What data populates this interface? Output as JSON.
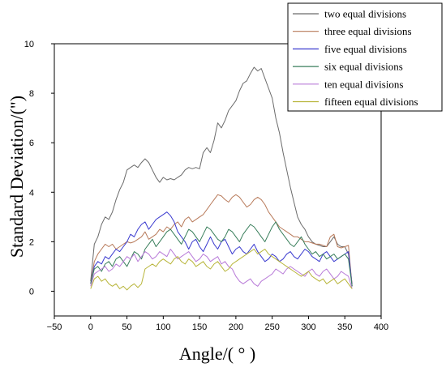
{
  "chart_data": {
    "type": "line",
    "xlabel": "Angle/( ° )",
    "ylabel": "Standard Deviation/(\")",
    "xlim": [
      -50,
      400
    ],
    "ylim": [
      -1,
      10
    ],
    "xticks": [
      "−50",
      "0",
      "50",
      "100",
      "150",
      "200",
      "250",
      "300",
      "350",
      "400"
    ],
    "yticks": [
      "0",
      "2",
      "4",
      "6",
      "8",
      "10"
    ],
    "legend_position": "top-right",
    "series": [
      {
        "name": "two equal divisions",
        "color": "#6b6b6b",
        "x": [
          0,
          5,
          10,
          15,
          20,
          25,
          30,
          35,
          40,
          45,
          50,
          55,
          60,
          65,
          70,
          75,
          80,
          85,
          90,
          95,
          100,
          105,
          110,
          115,
          120,
          125,
          130,
          135,
          140,
          145,
          150,
          155,
          160,
          165,
          170,
          175,
          180,
          185,
          190,
          195,
          200,
          205,
          210,
          215,
          220,
          225,
          230,
          235,
          240,
          245,
          250,
          255,
          260,
          265,
          270,
          275,
          280,
          285,
          290,
          295,
          300,
          305,
          310,
          315,
          320,
          325,
          330,
          335,
          340,
          345,
          350,
          355,
          360
        ],
        "y": [
          0.4,
          1.9,
          2.2,
          2.7,
          3.0,
          2.9,
          3.2,
          3.7,
          4.1,
          4.4,
          4.9,
          5.0,
          5.1,
          5.0,
          5.2,
          5.35,
          5.2,
          4.9,
          4.6,
          4.4,
          4.6,
          4.5,
          4.55,
          4.5,
          4.6,
          4.7,
          4.9,
          5.0,
          4.95,
          5.0,
          4.95,
          5.6,
          5.8,
          5.6,
          6.1,
          6.8,
          6.6,
          6.9,
          7.3,
          7.5,
          7.7,
          8.1,
          8.4,
          8.5,
          8.8,
          9.05,
          8.9,
          9.0,
          8.6,
          8.2,
          7.8,
          7.0,
          6.4,
          5.6,
          4.9,
          4.2,
          3.6,
          3.0,
          2.7,
          2.5,
          2.2,
          2.0,
          1.9,
          1.85,
          1.8,
          1.8,
          2.0,
          2.2,
          1.9,
          1.8,
          1.8,
          1.5,
          0.3
        ]
      },
      {
        "name": "three equal divisions",
        "color": "#b87a5a",
        "x": [
          0,
          5,
          10,
          15,
          20,
          25,
          30,
          35,
          40,
          45,
          50,
          55,
          60,
          65,
          70,
          75,
          80,
          85,
          90,
          95,
          100,
          105,
          110,
          115,
          120,
          125,
          130,
          135,
          140,
          145,
          150,
          155,
          160,
          165,
          170,
          175,
          180,
          185,
          190,
          195,
          200,
          205,
          210,
          215,
          220,
          225,
          230,
          235,
          240,
          245,
          250,
          255,
          260,
          265,
          270,
          275,
          280,
          285,
          290,
          295,
          300,
          305,
          310,
          315,
          320,
          325,
          330,
          335,
          340,
          345,
          350,
          355,
          360
        ],
        "y": [
          0.3,
          1.2,
          1.5,
          1.7,
          1.9,
          1.8,
          1.9,
          1.7,
          1.8,
          1.9,
          2.0,
          1.95,
          2.0,
          2.1,
          2.2,
          2.4,
          2.1,
          2.2,
          2.3,
          2.5,
          2.4,
          2.6,
          2.5,
          2.7,
          2.8,
          2.6,
          2.9,
          3.0,
          2.8,
          2.9,
          3.0,
          3.1,
          3.3,
          3.5,
          3.7,
          3.9,
          3.85,
          3.7,
          3.6,
          3.8,
          3.9,
          3.8,
          3.6,
          3.4,
          3.5,
          3.7,
          3.8,
          3.7,
          3.5,
          3.2,
          3.0,
          2.8,
          2.6,
          2.5,
          2.4,
          2.3,
          2.2,
          2.2,
          2.1,
          2.0,
          2.0,
          1.95,
          1.9,
          1.9,
          1.85,
          1.8,
          2.2,
          2.3,
          1.8,
          1.75,
          1.8,
          1.85,
          0.2
        ]
      },
      {
        "name": "five equal divisions",
        "color": "#3a3acf",
        "x": [
          0,
          5,
          10,
          15,
          20,
          25,
          30,
          35,
          40,
          45,
          50,
          55,
          60,
          65,
          70,
          75,
          80,
          85,
          90,
          95,
          100,
          105,
          110,
          115,
          120,
          125,
          130,
          135,
          140,
          145,
          150,
          155,
          160,
          165,
          170,
          175,
          180,
          185,
          190,
          195,
          200,
          205,
          210,
          215,
          220,
          225,
          230,
          235,
          240,
          245,
          250,
          255,
          260,
          265,
          270,
          275,
          280,
          285,
          290,
          295,
          300,
          305,
          310,
          315,
          320,
          325,
          330,
          335,
          340,
          345,
          350,
          355,
          360
        ],
        "y": [
          0.3,
          1.0,
          1.2,
          1.1,
          1.4,
          1.3,
          1.5,
          1.7,
          1.6,
          1.8,
          2.0,
          2.3,
          2.2,
          2.5,
          2.7,
          2.8,
          2.5,
          2.7,
          2.9,
          3.0,
          3.1,
          3.2,
          3.05,
          2.8,
          2.4,
          2.2,
          2.0,
          1.7,
          2.0,
          2.1,
          1.8,
          1.6,
          1.9,
          2.2,
          1.9,
          1.7,
          2.0,
          2.1,
          1.8,
          1.5,
          1.7,
          1.8,
          1.6,
          1.5,
          1.7,
          1.9,
          1.6,
          1.4,
          1.2,
          1.3,
          1.5,
          1.4,
          1.2,
          1.3,
          1.5,
          1.6,
          1.4,
          1.3,
          1.5,
          1.7,
          1.6,
          1.4,
          1.3,
          1.2,
          1.5,
          1.6,
          1.4,
          1.2,
          1.3,
          1.4,
          1.5,
          1.6,
          0.2
        ]
      },
      {
        "name": "six equal divisions",
        "color": "#3a7f5c",
        "x": [
          0,
          5,
          10,
          15,
          20,
          25,
          30,
          35,
          40,
          45,
          50,
          55,
          60,
          65,
          70,
          75,
          80,
          85,
          90,
          95,
          100,
          105,
          110,
          115,
          120,
          125,
          130,
          135,
          140,
          145,
          150,
          155,
          160,
          165,
          170,
          175,
          180,
          185,
          190,
          195,
          200,
          205,
          210,
          215,
          220,
          225,
          230,
          235,
          240,
          245,
          250,
          255,
          260,
          265,
          270,
          275,
          280,
          285,
          290,
          295,
          300,
          305,
          310,
          315,
          320,
          325,
          330,
          335,
          340,
          345,
          350,
          355,
          360
        ],
        "y": [
          0.3,
          0.9,
          1.0,
          0.8,
          1.1,
          1.2,
          1.0,
          1.3,
          1.4,
          1.2,
          1.0,
          1.3,
          1.6,
          1.5,
          1.3,
          1.7,
          1.9,
          2.1,
          1.8,
          2.0,
          2.2,
          2.4,
          2.5,
          2.3,
          2.1,
          1.9,
          2.2,
          2.5,
          2.4,
          2.2,
          2.0,
          2.3,
          2.6,
          2.5,
          2.3,
          2.1,
          2.0,
          2.2,
          2.5,
          2.4,
          2.2,
          2.0,
          2.3,
          2.5,
          2.7,
          2.6,
          2.4,
          2.2,
          2.0,
          2.3,
          2.6,
          2.8,
          2.5,
          2.3,
          2.1,
          1.9,
          1.8,
          2.0,
          2.2,
          1.9,
          1.7,
          1.5,
          1.6,
          1.4,
          1.5,
          1.3,
          1.4,
          1.5,
          1.3,
          1.4,
          1.5,
          1.3,
          0.2
        ]
      },
      {
        "name": "ten equal divisions",
        "color": "#b87ad8",
        "x": [
          0,
          5,
          10,
          15,
          20,
          25,
          30,
          35,
          40,
          45,
          50,
          55,
          60,
          65,
          70,
          75,
          80,
          85,
          90,
          95,
          100,
          105,
          110,
          115,
          120,
          125,
          130,
          135,
          140,
          145,
          150,
          155,
          160,
          165,
          170,
          175,
          180,
          185,
          190,
          195,
          200,
          205,
          210,
          215,
          220,
          225,
          230,
          235,
          240,
          245,
          250,
          255,
          260,
          265,
          270,
          275,
          280,
          285,
          290,
          295,
          300,
          305,
          310,
          315,
          320,
          325,
          330,
          335,
          340,
          345,
          350,
          355,
          360
        ],
        "y": [
          0.2,
          0.7,
          0.8,
          0.9,
          1.0,
          0.8,
          0.9,
          1.1,
          1.0,
          1.2,
          1.4,
          1.3,
          1.5,
          1.2,
          1.4,
          1.6,
          1.5,
          1.3,
          1.4,
          1.6,
          1.5,
          1.4,
          1.7,
          1.5,
          1.3,
          1.4,
          1.5,
          1.6,
          1.4,
          1.2,
          1.3,
          1.5,
          1.4,
          1.2,
          1.3,
          1.4,
          1.1,
          1.2,
          1.0,
          0.9,
          0.6,
          0.4,
          0.3,
          0.4,
          0.5,
          0.3,
          0.2,
          0.4,
          0.5,
          0.6,
          0.7,
          0.9,
          0.8,
          0.7,
          0.9,
          1.0,
          0.9,
          0.8,
          0.7,
          0.6,
          0.8,
          0.9,
          0.7,
          0.6,
          0.8,
          0.9,
          0.7,
          0.5,
          0.6,
          0.8,
          0.7,
          0.6,
          0.1
        ]
      },
      {
        "name": "fifteen equal divisions",
        "color": "#b8b53a",
        "x": [
          0,
          5,
          10,
          15,
          20,
          25,
          30,
          35,
          40,
          45,
          50,
          55,
          60,
          65,
          70,
          75,
          80,
          85,
          90,
          95,
          100,
          105,
          110,
          115,
          120,
          125,
          130,
          135,
          140,
          145,
          150,
          155,
          160,
          165,
          170,
          175,
          180,
          185,
          190,
          195,
          200,
          205,
          210,
          215,
          220,
          225,
          230,
          235,
          240,
          245,
          250,
          255,
          260,
          265,
          270,
          275,
          280,
          285,
          290,
          295,
          300,
          305,
          310,
          315,
          320,
          325,
          330,
          335,
          340,
          345,
          350,
          355,
          360
        ],
        "y": [
          0.1,
          0.5,
          0.6,
          0.4,
          0.5,
          0.3,
          0.2,
          0.3,
          0.1,
          0.2,
          0.05,
          0.2,
          0.3,
          0.15,
          0.3,
          0.9,
          1.0,
          1.1,
          1.0,
          1.2,
          1.3,
          1.2,
          1.1,
          1.3,
          1.4,
          1.2,
          1.1,
          1.3,
          1.2,
          1.0,
          1.1,
          1.2,
          1.0,
          0.9,
          1.1,
          1.2,
          1.0,
          0.8,
          0.9,
          1.1,
          1.2,
          1.3,
          1.4,
          1.5,
          1.6,
          1.7,
          1.5,
          1.6,
          1.7,
          1.5,
          1.4,
          1.3,
          1.2,
          1.1,
          1.0,
          0.9,
          0.8,
          0.7,
          0.6,
          0.7,
          0.8,
          0.6,
          0.5,
          0.4,
          0.5,
          0.3,
          0.4,
          0.5,
          0.3,
          0.4,
          0.5,
          0.3,
          0.1
        ]
      }
    ]
  }
}
